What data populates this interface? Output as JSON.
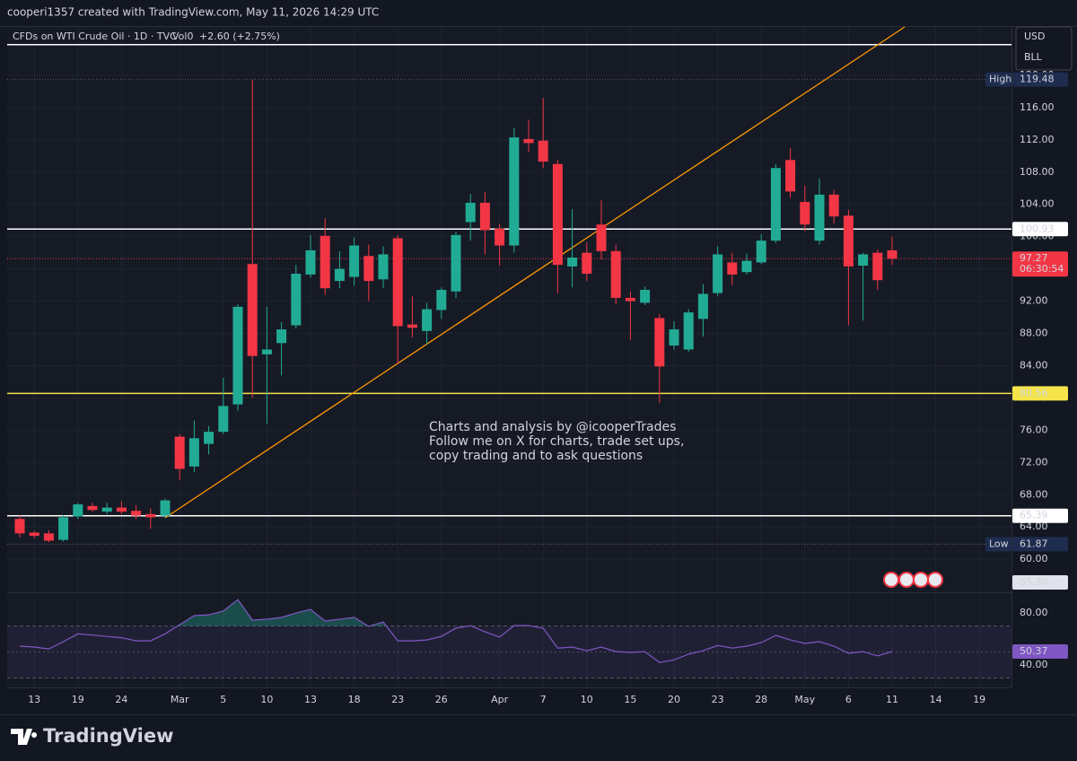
{
  "header": {
    "author_line": "cooperi1357 created with TradingView.com, May 11, 2026 14:29 UTC"
  },
  "chart_data": {
    "type": "candlestick",
    "title": "CFDs on WTI Crude Oil · 1D · TVC",
    "volume_label": "Vol0",
    "change_label": "+2.60 (+2.75%)",
    "currency": "USD",
    "unit": "BLL",
    "annotation": [
      "Charts and analysis by @icooperTrades",
      "Follow me on X for charts, trade set ups,",
      "copy trading and to ask questions"
    ],
    "categories": [
      null,
      "13",
      null,
      null,
      "19",
      null,
      null,
      "24",
      null,
      null,
      null,
      "Mar",
      null,
      null,
      "5",
      null,
      null,
      "10",
      null,
      null,
      "13",
      null,
      null,
      "18",
      null,
      null,
      "23",
      null,
      null,
      "26",
      null,
      null,
      null,
      "Apr",
      null,
      null,
      "7",
      null,
      null,
      "10",
      null,
      null,
      "15",
      null,
      null,
      "20",
      null,
      null,
      "23",
      null,
      null,
      "28",
      null,
      null,
      "May",
      null,
      null,
      "6",
      null,
      null,
      "11",
      null,
      null,
      "14",
      null,
      null,
      "19"
    ],
    "open": [
      65.0,
      63.3,
      63.2,
      62.4,
      65.3,
      66.6,
      65.9,
      66.4,
      66.0,
      65.6,
      65.4,
      75.2,
      71.5,
      74.3,
      75.8,
      79.2,
      96.6,
      85.4,
      86.8,
      89.0,
      95.3,
      100.1,
      94.5,
      95.0,
      97.6,
      94.7,
      99.8,
      89.1,
      88.3,
      90.9,
      93.2,
      101.8,
      104.2,
      101.0,
      98.9,
      112.1,
      111.9,
      109.0,
      96.3,
      98.0,
      101.5,
      98.2,
      92.4,
      91.8,
      89.9,
      86.5,
      86.0,
      89.8,
      93.0,
      96.8,
      95.6,
      96.8,
      99.5,
      109.5,
      104.3,
      99.5,
      105.2,
      102.6,
      96.4,
      98.0,
      98.3,
      null,
      null,
      null,
      null,
      null,
      null
    ],
    "high": [
      65.4,
      63.5,
      63.6,
      65.5,
      67.0,
      67.0,
      67.0,
      67.2,
      66.7,
      66.3,
      67.5,
      75.5,
      77.2,
      76.5,
      82.5,
      91.6,
      119.48,
      91.3,
      89.4,
      96.5,
      100.2,
      102.3,
      98.2,
      99.9,
      99.0,
      98.8,
      100.2,
      92.6,
      91.8,
      93.7,
      100.6,
      105.3,
      105.5,
      101.6,
      113.5,
      114.5,
      117.2,
      109.5,
      103.4,
      99.3,
      104.5,
      99.0,
      93.2,
      93.8,
      90.4,
      89.5,
      91.0,
      94.1,
      98.8,
      98.0,
      97.9,
      100.3,
      109.0,
      111.0,
      106.3,
      107.2,
      105.8,
      103.3,
      98.0,
      98.4,
      100.0,
      null,
      null,
      null,
      null,
      null,
      null
    ],
    "low": [
      62.7,
      62.6,
      62.1,
      62.2,
      65.0,
      65.9,
      65.6,
      65.6,
      65.0,
      63.8,
      65.1,
      69.8,
      70.8,
      73.0,
      75.5,
      78.4,
      80.0,
      76.8,
      82.8,
      88.6,
      94.9,
      92.8,
      93.6,
      93.9,
      92.0,
      93.6,
      84.2,
      87.5,
      86.6,
      89.8,
      92.4,
      99.5,
      97.8,
      96.4,
      98.0,
      110.5,
      108.5,
      93.0,
      93.7,
      94.5,
      97.2,
      91.6,
      87.2,
      91.5,
      79.4,
      86.0,
      85.7,
      87.6,
      92.6,
      94.0,
      95.3,
      96.6,
      99.2,
      104.8,
      100.7,
      99.0,
      101.6,
      89.0,
      89.6,
      93.4,
      96.5,
      null,
      null,
      null,
      null,
      null,
      null
    ],
    "close": [
      63.2,
      62.9,
      62.3,
      65.2,
      66.8,
      66.1,
      66.4,
      65.9,
      65.4,
      65.2,
      67.3,
      71.2,
      75.0,
      75.8,
      79.0,
      91.3,
      85.2,
      86.0,
      88.5,
      95.4,
      98.3,
      93.6,
      96.0,
      98.9,
      94.5,
      97.8,
      88.9,
      88.7,
      91.0,
      93.4,
      100.2,
      104.2,
      100.8,
      98.9,
      112.3,
      111.6,
      109.3,
      96.5,
      97.4,
      95.4,
      98.2,
      92.4,
      92.0,
      93.4,
      83.9,
      88.5,
      90.6,
      92.9,
      97.8,
      95.3,
      97.0,
      99.5,
      108.5,
      105.6,
      101.5,
      105.2,
      102.5,
      96.3,
      97.8,
      94.6,
      97.27,
      null,
      null,
      null,
      null,
      null,
      null
    ],
    "up_color": "#22ab94",
    "down_color": "#f23645",
    "ylim": [
      55.9,
      126.0
    ],
    "yticks": [
      {
        "value": 60,
        "label": "60.00"
      },
      {
        "value": 64,
        "label": "64.00"
      },
      {
        "value": 68,
        "label": "68.00"
      },
      {
        "value": 72,
        "label": "72.00"
      },
      {
        "value": 76,
        "label": "76.00"
      },
      {
        "value": 80,
        "label": "80.00"
      },
      {
        "value": 84,
        "label": "84.00"
      },
      {
        "value": 88,
        "label": "88.00"
      },
      {
        "value": 92,
        "label": "92.00"
      },
      {
        "value": 96,
        "label": "96.00"
      },
      {
        "value": 100,
        "label": "100.00"
      },
      {
        "value": 104,
        "label": "104.00"
      },
      {
        "value": 108,
        "label": "108.00"
      },
      {
        "value": 112,
        "label": "112.00"
      },
      {
        "value": 116,
        "label": "116.00"
      },
      {
        "value": 120,
        "label": "120.00"
      }
    ],
    "grid": true,
    "levels": [
      {
        "value": 123.8,
        "color": "#ffffff",
        "show_label": false
      },
      {
        "value": 100.93,
        "color": "#ffffff",
        "show_label": true
      },
      {
        "value": 80.56,
        "color": "#f5e44a",
        "show_label": true
      },
      {
        "value": 65.39,
        "color": "#ffffff",
        "show_label": true
      }
    ],
    "session_high": {
      "label": "High",
      "value": 119.48
    },
    "session_low": {
      "label": "Low",
      "value": 61.87
    },
    "countdown": "06:30:54",
    "scale_marker": {
      "value": 55.3,
      "label": "55.30"
    },
    "rsi": {
      "color": "#7e57c2",
      "values": [
        54.5,
        53.8,
        52.4,
        58,
        64,
        63,
        62,
        61,
        58.6,
        58.6,
        64,
        71,
        78,
        78.6,
        81.4,
        90.3,
        74.5,
        75.2,
        76.6,
        80,
        82.8,
        73.8,
        75.2,
        76.6,
        69.7,
        73,
        58.6,
        58.6,
        59.3,
        62,
        68.3,
        70.3,
        65.5,
        61.4,
        70.3,
        70.3,
        68.3,
        53,
        53.8,
        51,
        53.8,
        50.3,
        49.7,
        50.3,
        42,
        44,
        48.3,
        51,
        55,
        53,
        54.5,
        57.2,
        62.8,
        59.3,
        56.6,
        58,
        54.5,
        49,
        50.3,
        47,
        50.37,
        null,
        null,
        null,
        null,
        null,
        null
      ],
      "ylim": [
        22.8,
        95.9
      ],
      "yticks": [
        {
          "value": 80,
          "label": "80.00"
        },
        {
          "value": 40,
          "label": "40.00"
        }
      ],
      "bands": [
        70,
        30
      ],
      "midline": 50
    }
  }
}
